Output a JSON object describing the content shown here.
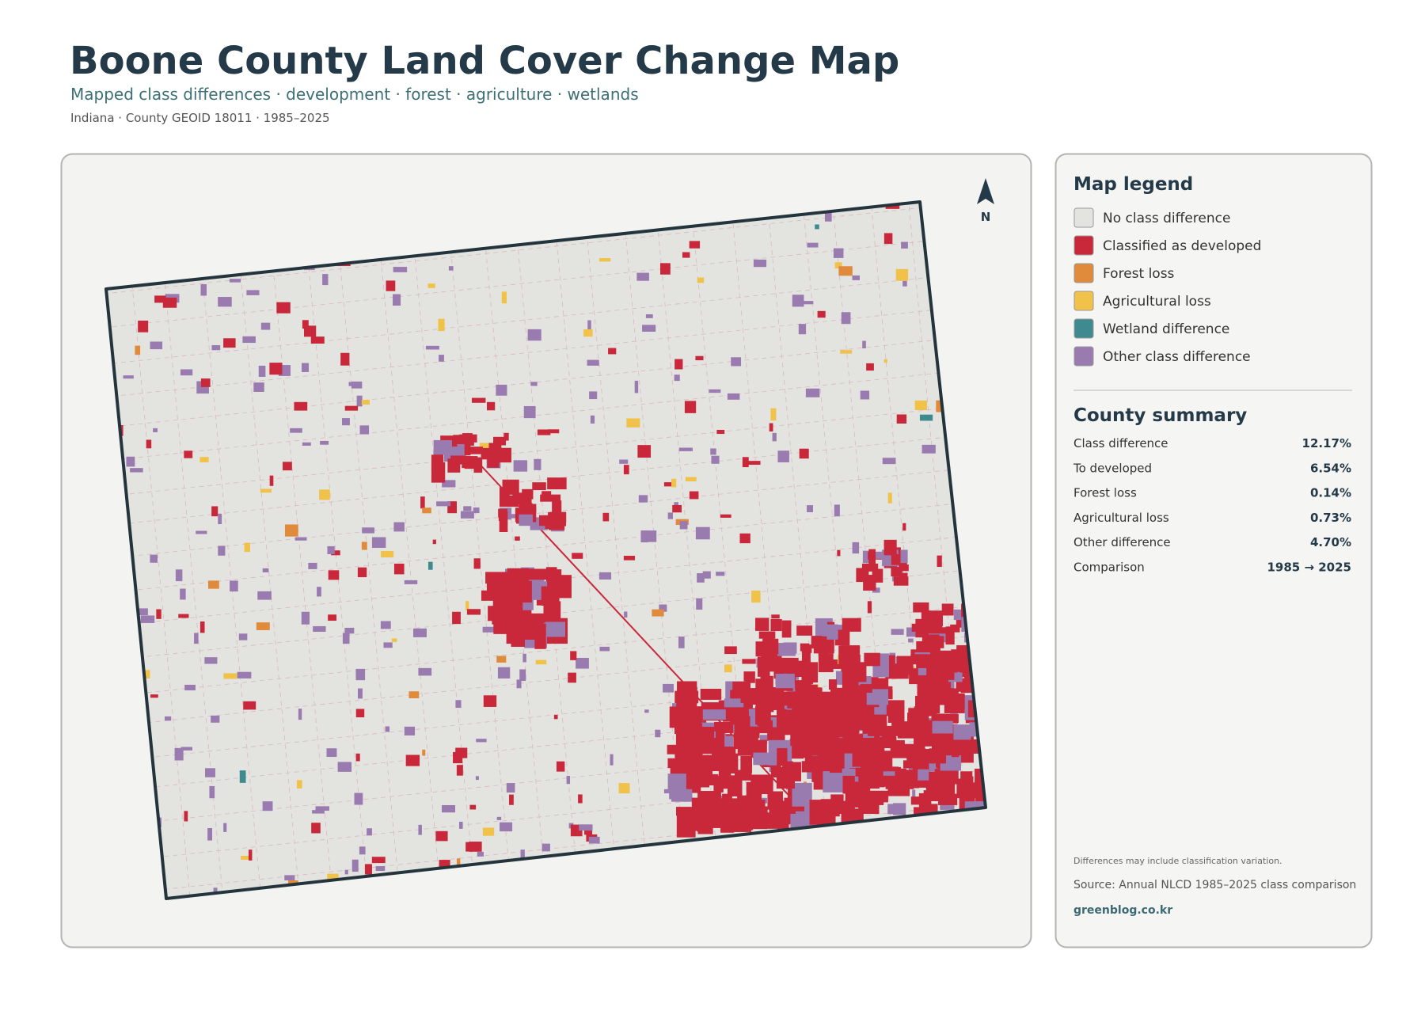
{
  "header": {
    "title": "Boone County Land Cover Change Map",
    "subtitle": "Mapped class differences · development · forest · agriculture · wetlands",
    "meta": "Indiana · County GEOID 18011 · 1985–2025"
  },
  "map": {
    "north_label": "N"
  },
  "legend": {
    "title": "Map legend",
    "items": [
      {
        "label": "No class difference",
        "color": "#e3e3df"
      },
      {
        "label": "Classified as developed",
        "color": "#c8283a"
      },
      {
        "label": "Forest loss",
        "color": "#e08a3c"
      },
      {
        "label": "Agricultural loss",
        "color": "#f0c24a"
      },
      {
        "label": "Wetland difference",
        "color": "#3f8a8f"
      },
      {
        "label": "Other class difference",
        "color": "#9a7bb0"
      }
    ]
  },
  "summary": {
    "title": "County summary",
    "rows": [
      [
        "Class difference",
        "12.17%"
      ],
      [
        "To developed",
        "6.54%"
      ],
      [
        "Forest loss",
        "0.14%"
      ],
      [
        "Agricultural loss",
        "0.73%"
      ],
      [
        "Other difference",
        "4.70%"
      ],
      [
        "Comparison",
        "1985 → 2025"
      ]
    ]
  },
  "footer": {
    "note": "Differences may include classification variation.",
    "source": "Source: Annual NLCD 1985–2025 class comparison",
    "site": "greenblog.co.kr"
  }
}
